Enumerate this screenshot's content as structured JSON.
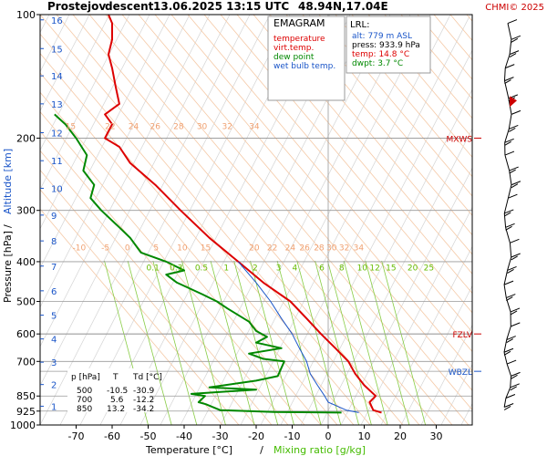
{
  "header": {
    "station": "Prostejov",
    "mode": "descent",
    "datetime": "13.06.2025 13:15 UTC",
    "coords": "48.94N,17.04E",
    "copyright": "CHMI© 2025"
  },
  "legend": {
    "title": "EMAGRAM",
    "items": [
      {
        "label": "temperature",
        "color": "#dd0000"
      },
      {
        "label": "virt.temp.",
        "color": "#dd0000"
      },
      {
        "label": "dew point",
        "color": "#008800"
      },
      {
        "label": "wet bulb temp.",
        "color": "#1a55c8"
      }
    ]
  },
  "lrl": {
    "title": "LRL:",
    "alt": "alt: 779 m ASL",
    "press": "press: 933.9 hPa",
    "temp": "temp: 14.8 °C",
    "dwpt": "dwpt: 3.7 °C"
  },
  "levels": [
    {
      "label": "MXWS",
      "p": 200,
      "color": "#cc0000"
    },
    {
      "label": "FZLV",
      "p": 600,
      "color": "#cc0000"
    },
    {
      "label": "WBZL",
      "p": 740,
      "color": "#1a55c8"
    }
  ],
  "table": {
    "headers": [
      "p [hPa]",
      "T",
      "Td [°C]"
    ],
    "rows": [
      [
        "500",
        "-10.5",
        "-30.9"
      ],
      [
        "700",
        "5.6",
        "-12.2"
      ],
      [
        "850",
        "13.2",
        "-34.2"
      ]
    ]
  },
  "chart_data": {
    "type": "line",
    "title": "EMAGRAM",
    "xlabel": "Temperature [°C]",
    "xlabel2": "Mixing ratio [g/kg]",
    "ylabel": "Pressure [hPa]",
    "ylabel2": "Altitude [km]",
    "xlim": [
      -80,
      40
    ],
    "ylim": [
      1000,
      100
    ],
    "yscale": "log",
    "xticks": [
      -70,
      -60,
      -50,
      -40,
      -30,
      -20,
      -10,
      0,
      10,
      20,
      30
    ],
    "yticks": [
      100,
      200,
      300,
      400,
      500,
      600,
      700,
      850,
      925,
      1000
    ],
    "altitude_ticks": [
      "1",
      "2",
      "3",
      "4",
      "5",
      "6",
      "7",
      "8",
      "9",
      "10",
      "11",
      "12",
      "13",
      "14",
      "15",
      "16"
    ],
    "altitude_p": [
      900,
      797,
      703,
      617,
      540,
      471,
      410,
      356,
      308,
      265,
      227,
      194,
      165,
      141,
      121,
      103
    ],
    "mixing_ratio_labels": [
      "0.1",
      "0.3",
      "0.5",
      "1",
      "2",
      "3",
      "4",
      "6",
      "8",
      "10",
      "12",
      "15",
      "20",
      "25"
    ],
    "mixing_ratio_x": [
      -50,
      -43.5,
      -36.5,
      -28.5,
      -20.5,
      -14,
      -9.5,
      -2,
      3.5,
      8.5,
      12,
      16.5,
      22.5,
      27
    ],
    "pot_temp_labels_row1": [
      "15",
      "22",
      "24",
      "26",
      "28",
      "30",
      "32",
      "34"
    ],
    "pot_temp_row1_x": [
      -73,
      -62,
      -55.5,
      -49.5,
      -43,
      -36.5,
      -29.5,
      -22
    ],
    "pot_temp_labels_row2": [
      "-10",
      "-5",
      "0",
      "5",
      "10",
      "15",
      "20",
      "22",
      "24",
      "26",
      "28",
      "30",
      "32",
      "34"
    ],
    "pot_temp_row2_x": [
      -71,
      -63,
      -56.5,
      -48.5,
      -42,
      -35.5,
      -22,
      -17,
      -12,
      -8,
      -4,
      -0.5,
      3,
      7
    ],
    "series": [
      {
        "name": "temperature",
        "color": "#dd0000",
        "points": [
          [
            14.8,
            933
          ],
          [
            12.5,
            920
          ],
          [
            11.5,
            880
          ],
          [
            13.2,
            850
          ],
          [
            10,
            800
          ],
          [
            7.5,
            750
          ],
          [
            5.6,
            700
          ],
          [
            2,
            650
          ],
          [
            -2,
            600
          ],
          [
            -6,
            550
          ],
          [
            -10.5,
            500
          ],
          [
            -18,
            450
          ],
          [
            -25,
            400
          ],
          [
            -33,
            350
          ],
          [
            -41,
            300
          ],
          [
            -48,
            260
          ],
          [
            -55,
            230
          ],
          [
            -58,
            210
          ],
          [
            -62,
            200
          ],
          [
            -60,
            185
          ],
          [
            -62,
            175
          ],
          [
            -58,
            165
          ],
          [
            -59,
            150
          ],
          [
            -60,
            135
          ],
          [
            -61,
            125
          ],
          [
            -60,
            115
          ],
          [
            -60,
            105
          ],
          [
            -61,
            100
          ]
        ]
      },
      {
        "name": "dew point",
        "color": "#008800",
        "points": [
          [
            3.7,
            933
          ],
          [
            -15,
            930
          ],
          [
            -30,
            920
          ],
          [
            -34,
            890
          ],
          [
            -36,
            880
          ],
          [
            -34.2,
            850
          ],
          [
            -38,
            840
          ],
          [
            -20,
            820
          ],
          [
            -33,
            810
          ],
          [
            -20,
            780
          ],
          [
            -14,
            760
          ],
          [
            -12.2,
            700
          ],
          [
            -18,
            690
          ],
          [
            -22,
            670
          ],
          [
            -13,
            650
          ],
          [
            -20,
            630
          ],
          [
            -17,
            610
          ],
          [
            -20,
            590
          ],
          [
            -22,
            560
          ],
          [
            -28,
            520
          ],
          [
            -30.9,
            500
          ],
          [
            -35,
            480
          ],
          [
            -42,
            450
          ],
          [
            -45,
            430
          ],
          [
            -40,
            420
          ],
          [
            -45,
            400
          ],
          [
            -52,
            380
          ],
          [
            -55,
            350
          ],
          [
            -58,
            330
          ],
          [
            -63,
            300
          ],
          [
            -66,
            280
          ],
          [
            -65,
            260
          ],
          [
            -68,
            240
          ],
          [
            -67,
            220
          ],
          [
            -70,
            200
          ],
          [
            -73,
            185
          ],
          [
            -76,
            175
          ]
        ]
      },
      {
        "name": "wet bulb temp.",
        "color": "#1a55c8",
        "points": [
          [
            8.5,
            933
          ],
          [
            5,
            920
          ],
          [
            0,
            880
          ],
          [
            -1,
            850
          ],
          [
            -3,
            800
          ],
          [
            -5,
            750
          ],
          [
            -6,
            700
          ],
          [
            -8,
            650
          ],
          [
            -10,
            600
          ],
          [
            -13,
            550
          ],
          [
            -16,
            500
          ],
          [
            -20,
            450
          ],
          [
            -25,
            400
          ]
        ]
      }
    ]
  }
}
